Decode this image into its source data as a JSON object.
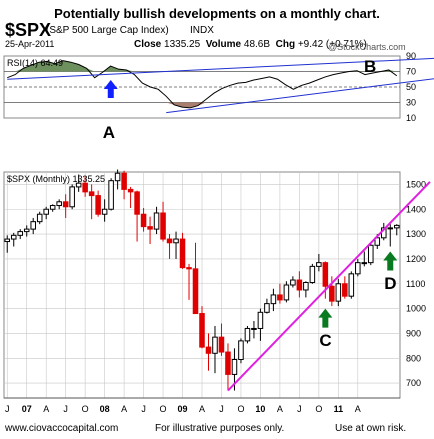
{
  "header": {
    "title": "Potentially bullish developments on a monthly chart.",
    "ticker": "$SPX",
    "ticker_desc": "(S&P 500 Large Cap Index)",
    "exchange": "INDX",
    "date": "25-Apr-2011",
    "close_label": "Close",
    "close_value": "1335.25",
    "volume_label": "Volume",
    "volume_value": "48.6B",
    "chg_label": "Chg",
    "chg_value": "+9.42 (+0.71%)",
    "watermark": "@StockCharts.com"
  },
  "footer": {
    "left": "www.ciovaccocapital.com",
    "middle": "For illustrative purposes only.",
    "right": "Use at own risk."
  },
  "colors": {
    "rsi_line": "#000000",
    "rsi_fill_high": "#6e8f5e",
    "rsi_fill_low": "#a87f6e",
    "rsi_trend": "#2030d0",
    "price_trend": "#e020e0",
    "candle_up": "#000000",
    "candle_down": "#e00000",
    "arrow_up_blue": "#1020ff",
    "arrow_up_green": "#0a7a20",
    "grid": "#c8c8c8"
  },
  "chart_data": [
    {
      "type": "line",
      "indicator": "RSI(14)",
      "legend_label": "RSI(14) 64.49",
      "ylim": [
        10,
        90
      ],
      "yticks": [
        10,
        30,
        50,
        70,
        90
      ],
      "reference_lines": [
        30,
        50,
        70
      ],
      "x_months": [
        0,
        2,
        4,
        6,
        8,
        10,
        12,
        14,
        16,
        18,
        20,
        22,
        24,
        26,
        28,
        30,
        32,
        34,
        36,
        38,
        40,
        42,
        44,
        46,
        48,
        50,
        52,
        54,
        56,
        58,
        60,
        62,
        64,
        66,
        68,
        70,
        72,
        74,
        76,
        78,
        80,
        82,
        84,
        86,
        88,
        90,
        92,
        94,
        96,
        98
      ],
      "values": [
        62,
        66,
        74,
        78,
        82,
        83,
        80,
        84,
        82,
        79,
        74,
        62,
        69,
        77,
        73,
        72,
        66,
        55,
        50,
        47,
        38,
        27,
        24,
        23,
        26,
        34,
        42,
        48,
        52,
        55,
        56,
        59,
        61,
        63,
        60,
        53,
        47,
        52,
        55,
        59,
        63,
        66,
        68,
        70,
        71,
        66,
        68,
        70,
        72,
        64.5
      ],
      "annotations": [
        {
          "label": "A",
          "x_month": 19,
          "value": 72,
          "arrow": "blue-up"
        },
        {
          "label": "B",
          "x_month": 146,
          "value": 82
        }
      ],
      "trend_lines": [
        {
          "name": "rsi-upper-line",
          "from": [
            0,
            60
          ],
          "to": [
            108,
            78
          ]
        },
        {
          "name": "rsi-lower-line",
          "from": [
            40,
            17
          ],
          "to": [
            108,
            58
          ]
        }
      ]
    },
    {
      "type": "candlestick",
      "legend_label": "$SPX (Monthly) 1335.25",
      "ylim": [
        640,
        1550
      ],
      "yticks": [
        700,
        800,
        900,
        1000,
        1100,
        1200,
        1300,
        1400,
        1500
      ],
      "x_tick_labels": [
        "J",
        "07",
        "A",
        "J",
        "O",
        "08",
        "A",
        "J",
        "O",
        "09",
        "A",
        "J",
        "O",
        "10",
        "A",
        "J",
        "O",
        "11",
        "A"
      ],
      "x_tick_months": [
        0,
        3,
        6,
        9,
        12,
        15,
        18,
        21,
        24,
        27,
        30,
        33,
        36,
        39,
        42,
        45,
        48,
        51,
        54
      ],
      "bold_ticks": [
        "07",
        "08",
        "09",
        "10",
        "11"
      ],
      "candles": [
        {
          "o": 1270,
          "h": 1295,
          "l": 1225,
          "c": 1280
        },
        {
          "o": 1280,
          "h": 1305,
          "l": 1250,
          "c": 1295
        },
        {
          "o": 1295,
          "h": 1320,
          "l": 1280,
          "c": 1310
        },
        {
          "o": 1310,
          "h": 1335,
          "l": 1290,
          "c": 1320
        },
        {
          "o": 1320,
          "h": 1365,
          "l": 1300,
          "c": 1350
        },
        {
          "o": 1350,
          "h": 1390,
          "l": 1340,
          "c": 1380
        },
        {
          "o": 1380,
          "h": 1410,
          "l": 1360,
          "c": 1400
        },
        {
          "o": 1400,
          "h": 1420,
          "l": 1390,
          "c": 1415
        },
        {
          "o": 1415,
          "h": 1440,
          "l": 1400,
          "c": 1430
        },
        {
          "o": 1430,
          "h": 1460,
          "l": 1365,
          "c": 1410
        },
        {
          "o": 1410,
          "h": 1500,
          "l": 1400,
          "c": 1490
        },
        {
          "o": 1490,
          "h": 1540,
          "l": 1470,
          "c": 1505
        },
        {
          "o": 1505,
          "h": 1535,
          "l": 1450,
          "c": 1470
        },
        {
          "o": 1470,
          "h": 1500,
          "l": 1360,
          "c": 1455
        },
        {
          "o": 1455,
          "h": 1475,
          "l": 1370,
          "c": 1380
        },
        {
          "o": 1380,
          "h": 1440,
          "l": 1350,
          "c": 1400
        },
        {
          "o": 1400,
          "h": 1525,
          "l": 1395,
          "c": 1515
        },
        {
          "o": 1515,
          "h": 1560,
          "l": 1480,
          "c": 1545
        },
        {
          "o": 1545,
          "h": 1555,
          "l": 1440,
          "c": 1480
        },
        {
          "o": 1480,
          "h": 1490,
          "l": 1405,
          "c": 1470
        },
        {
          "o": 1470,
          "h": 1475,
          "l": 1270,
          "c": 1380
        },
        {
          "o": 1380,
          "h": 1405,
          "l": 1310,
          "c": 1330
        },
        {
          "o": 1330,
          "h": 1370,
          "l": 1260,
          "c": 1320
        },
        {
          "o": 1320,
          "h": 1410,
          "l": 1300,
          "c": 1385
        },
        {
          "o": 1385,
          "h": 1430,
          "l": 1270,
          "c": 1280
        },
        {
          "o": 1280,
          "h": 1300,
          "l": 1200,
          "c": 1265
        },
        {
          "o": 1265,
          "h": 1310,
          "l": 1200,
          "c": 1280
        },
        {
          "o": 1280,
          "h": 1305,
          "l": 1160,
          "c": 1165
        },
        {
          "o": 1165,
          "h": 1180,
          "l": 1035,
          "c": 1160
        },
        {
          "o": 1160,
          "h": 1265,
          "l": 980,
          "c": 980
        },
        {
          "o": 980,
          "h": 1010,
          "l": 840,
          "c": 845
        },
        {
          "o": 845,
          "h": 900,
          "l": 750,
          "c": 820
        },
        {
          "o": 820,
          "h": 930,
          "l": 740,
          "c": 885
        },
        {
          "o": 885,
          "h": 940,
          "l": 810,
          "c": 825
        },
        {
          "o": 825,
          "h": 860,
          "l": 670,
          "c": 735
        },
        {
          "o": 735,
          "h": 840,
          "l": 670,
          "c": 795
        },
        {
          "o": 795,
          "h": 880,
          "l": 780,
          "c": 870
        },
        {
          "o": 870,
          "h": 930,
          "l": 860,
          "c": 920
        },
        {
          "o": 920,
          "h": 950,
          "l": 880,
          "c": 920
        },
        {
          "o": 920,
          "h": 1000,
          "l": 870,
          "c": 985
        },
        {
          "o": 985,
          "h": 1040,
          "l": 980,
          "c": 1020
        },
        {
          "o": 1020,
          "h": 1080,
          "l": 990,
          "c": 1055
        },
        {
          "o": 1055,
          "h": 1100,
          "l": 1020,
          "c": 1035
        },
        {
          "o": 1035,
          "h": 1110,
          "l": 1025,
          "c": 1095
        },
        {
          "o": 1095,
          "h": 1130,
          "l": 1085,
          "c": 1115
        },
        {
          "o": 1115,
          "h": 1150,
          "l": 1045,
          "c": 1075
        },
        {
          "o": 1075,
          "h": 1110,
          "l": 1045,
          "c": 1105
        },
        {
          "o": 1105,
          "h": 1180,
          "l": 1100,
          "c": 1170
        },
        {
          "o": 1170,
          "h": 1220,
          "l": 1150,
          "c": 1185
        },
        {
          "o": 1185,
          "h": 1190,
          "l": 1040,
          "c": 1090
        },
        {
          "o": 1090,
          "h": 1130,
          "l": 1010,
          "c": 1030
        },
        {
          "o": 1030,
          "h": 1120,
          "l": 1010,
          "c": 1100
        },
        {
          "o": 1100,
          "h": 1130,
          "l": 1040,
          "c": 1050
        },
        {
          "o": 1050,
          "h": 1150,
          "l": 1040,
          "c": 1140
        },
        {
          "o": 1140,
          "h": 1200,
          "l": 1130,
          "c": 1185
        },
        {
          "o": 1185,
          "h": 1230,
          "l": 1170,
          "c": 1185
        },
        {
          "o": 1185,
          "h": 1260,
          "l": 1175,
          "c": 1255
        },
        {
          "o": 1255,
          "h": 1300,
          "l": 1240,
          "c": 1285
        },
        {
          "o": 1285,
          "h": 1345,
          "l": 1275,
          "c": 1325
        },
        {
          "o": 1325,
          "h": 1340,
          "l": 1250,
          "c": 1325
        },
        {
          "o": 1325,
          "h": 1340,
          "l": 1295,
          "c": 1335
        }
      ],
      "trend_line": {
        "name": "price-support-line",
        "from": [
          34,
          670
        ],
        "to": [
          61,
          1430
        ]
      },
      "annotations": [
        {
          "label": "C",
          "x_index": 49,
          "value": 930,
          "arrow": "green-up",
          "arrow_value": 1000
        },
        {
          "label": "D",
          "x_index": 59,
          "value": 1160,
          "arrow": "green-up",
          "arrow_value": 1230
        }
      ]
    }
  ]
}
